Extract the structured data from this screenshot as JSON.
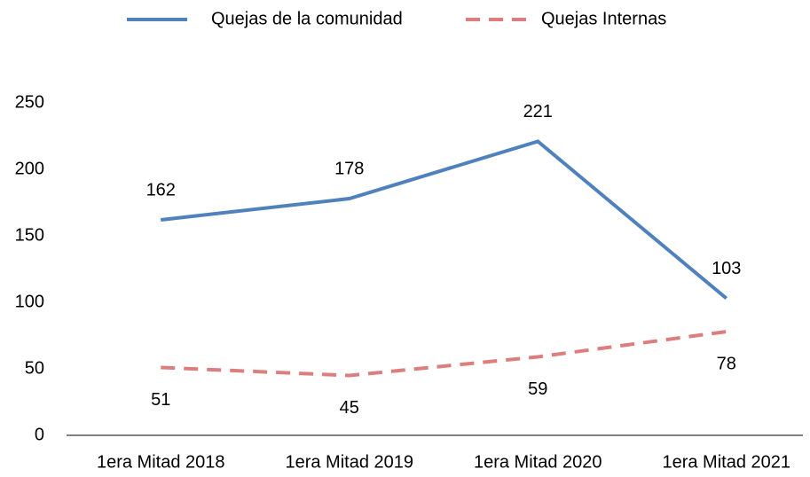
{
  "chart_data": {
    "type": "line",
    "categories": [
      "1era Mitad 2018",
      "1era Mitad 2019",
      "1era Mitad 2020",
      "1era Mitad 2021"
    ],
    "series": [
      {
        "name": "Quejas de la comunidad",
        "color": "#4f81bd",
        "dash": false,
        "values": [
          162,
          178,
          221,
          103
        ]
      },
      {
        "name": "Quejas Internas",
        "color": "#dd7e7e",
        "dash": true,
        "values": [
          51,
          45,
          59,
          78
        ]
      }
    ],
    "ylim": [
      0,
      250
    ],
    "yticks": [
      0,
      50,
      100,
      150,
      200,
      250
    ],
    "grid": false,
    "legend": "top"
  }
}
